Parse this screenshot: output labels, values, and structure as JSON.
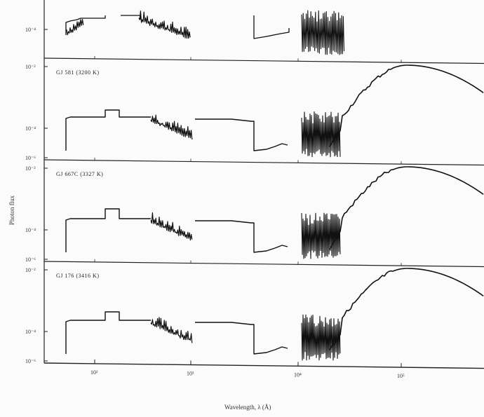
{
  "chart_data": {
    "type": "line",
    "xlabel": "Wavelength, λ (Å)",
    "ylabel": "Photon flux",
    "x_scale": "log",
    "x_ticks": [
      "10²",
      "10³",
      "10⁴",
      "10⁵"
    ],
    "panels": [
      {
        "label": "",
        "y_ticks": [
          "10⁻⁴"
        ]
      },
      {
        "label": "GJ 581 (3200 K)",
        "y_ticks": [
          "10⁻²",
          "10⁻⁴",
          "10⁻⁶"
        ]
      },
      {
        "label": "GJ 667C (3327 K)",
        "y_ticks": [
          "10⁻²",
          "10⁻⁴",
          "10⁻⁶"
        ]
      },
      {
        "label": "GJ 176 (3416 K)",
        "y_ticks": [
          "10⁻²",
          "10⁻⁴",
          "10⁻⁶"
        ]
      }
    ],
    "grid": false,
    "legend": "none"
  }
}
